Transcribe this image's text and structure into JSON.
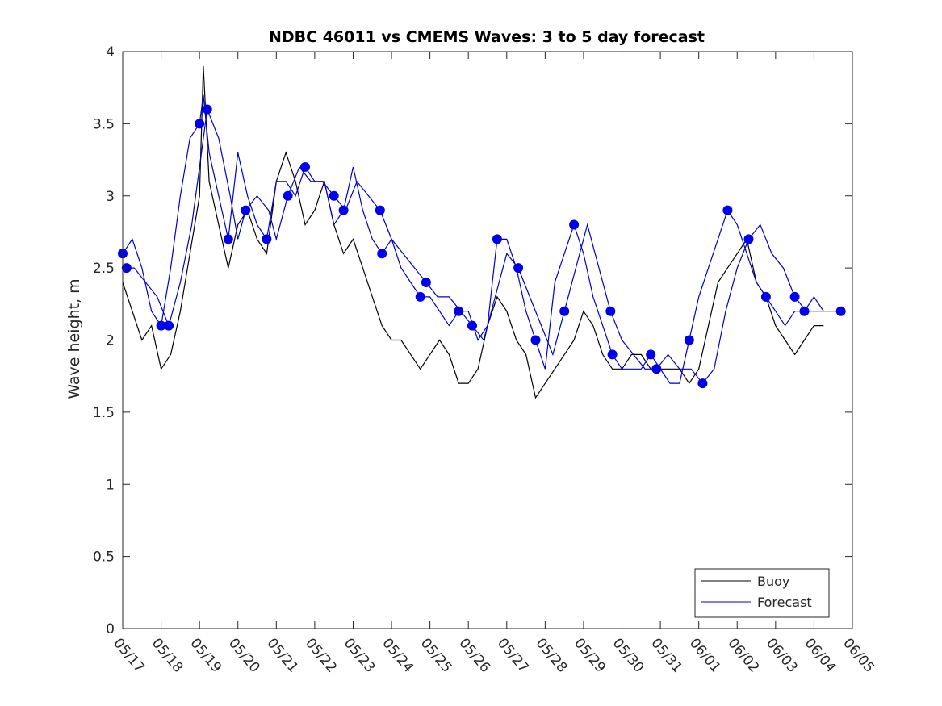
{
  "chart_data": {
    "type": "line",
    "title": "NDBC 46011 vs CMEMS Waves: 3 to 5 day forecast",
    "xlabel": "",
    "ylabel": "Wave height, m",
    "x_tick_labels": [
      "05/17",
      "05/18",
      "05/19",
      "05/20",
      "05/21",
      "05/22",
      "05/23",
      "05/24",
      "05/25",
      "05/26",
      "05/27",
      "05/28",
      "05/29",
      "05/30",
      "05/31",
      "06/01",
      "06/02",
      "06/03",
      "06/04",
      "06/05"
    ],
    "y_ticks": [
      0,
      0.5,
      1,
      1.5,
      2,
      2.5,
      3,
      3.5,
      4
    ],
    "y_tick_labels": [
      "0",
      "0.5",
      "1",
      "1.5",
      "2",
      "2.5",
      "3",
      "3.5",
      "4"
    ],
    "xlim_days": [
      0,
      19
    ],
    "ylim": [
      0,
      4
    ],
    "legend": {
      "position": "bottom-right",
      "entries": [
        {
          "label": "Buoy",
          "color": "#000000"
        },
        {
          "label": "Forecast",
          "color": "#0000cc"
        }
      ]
    },
    "series": [
      {
        "name": "Buoy",
        "color": "#000000",
        "x_days": [
          0,
          0.25,
          0.5,
          0.75,
          1.0,
          1.25,
          1.5,
          1.75,
          2.0,
          2.1,
          2.25,
          2.5,
          2.75,
          3.0,
          3.25,
          3.5,
          3.75,
          4.0,
          4.25,
          4.5,
          4.75,
          5.0,
          5.25,
          5.5,
          5.75,
          6.0,
          6.25,
          6.5,
          6.75,
          7.0,
          7.25,
          7.5,
          7.75,
          8.0,
          8.25,
          8.5,
          8.75,
          9.0,
          9.25,
          9.5,
          9.75,
          10.0,
          10.25,
          10.5,
          10.75,
          11.0,
          11.25,
          11.5,
          11.75,
          12.0,
          12.25,
          12.5,
          12.75,
          13.0,
          13.25,
          13.5,
          13.75,
          14.0,
          14.25,
          14.5,
          14.75,
          15.0,
          15.25,
          15.5,
          15.75,
          16.0,
          16.25,
          16.5,
          16.75,
          17.0,
          17.25,
          17.5,
          17.75,
          18.0,
          18.25
        ],
        "values": [
          2.4,
          2.2,
          2.0,
          2.1,
          1.8,
          1.9,
          2.2,
          2.6,
          3.0,
          3.9,
          3.1,
          2.8,
          2.5,
          2.8,
          2.9,
          2.7,
          2.6,
          3.1,
          3.3,
          3.1,
          2.8,
          2.9,
          3.1,
          2.8,
          2.6,
          2.7,
          2.5,
          2.3,
          2.1,
          2.0,
          2.0,
          1.9,
          1.8,
          1.9,
          2.0,
          1.9,
          1.7,
          1.7,
          1.8,
          2.1,
          2.3,
          2.2,
          2.0,
          1.9,
          1.6,
          1.7,
          1.8,
          1.9,
          2.0,
          2.2,
          2.1,
          1.9,
          1.8,
          1.8,
          1.9,
          1.9,
          1.8,
          1.8,
          1.8,
          1.8,
          1.7,
          1.8,
          2.1,
          2.4,
          2.5,
          2.6,
          2.7,
          2.4,
          2.3,
          2.1,
          2.0,
          1.9,
          2.0,
          2.1,
          2.1
        ]
      },
      {
        "name": "Forecast",
        "color": "#0000cc",
        "x_days": [
          0,
          0.25,
          0.5,
          0.75,
          1.0,
          1.25,
          1.5,
          1.75,
          2.0,
          2.1,
          2.25,
          2.5,
          2.75,
          3.0,
          3.25,
          3.5,
          3.75,
          4.0,
          4.25,
          4.5,
          4.75,
          5.0,
          5.25,
          5.5,
          5.75,
          6.0,
          6.25,
          6.5,
          6.75,
          7.0,
          7.25,
          7.5,
          7.75,
          8.0,
          8.25,
          8.5,
          8.75,
          9.0,
          9.25,
          9.5,
          9.75,
          10.0,
          10.25,
          10.5,
          10.75,
          11.0,
          11.25,
          11.5,
          11.75,
          12.0,
          12.25,
          12.5,
          12.75,
          13.0,
          13.25,
          13.5,
          13.75,
          14.0,
          14.25,
          14.5,
          14.75,
          15.0,
          15.25,
          15.5,
          15.75,
          16.0,
          16.25,
          16.5,
          16.75,
          17.0,
          17.25,
          17.5,
          17.75,
          18.0,
          18.25
        ],
        "values": [
          2.6,
          2.7,
          2.5,
          2.2,
          2.1,
          2.5,
          3.0,
          3.4,
          3.5,
          3.7,
          3.3,
          3.0,
          2.7,
          3.3,
          3.0,
          2.8,
          2.7,
          3.1,
          3.1,
          3.0,
          3.2,
          3.1,
          3.1,
          2.8,
          2.9,
          3.2,
          2.9,
          2.7,
          2.6,
          2.7,
          2.5,
          2.4,
          2.3,
          2.3,
          2.2,
          2.1,
          2.2,
          2.2,
          2.0,
          2.1,
          2.7,
          2.7,
          2.5,
          2.2,
          2.0,
          1.8,
          2.4,
          2.6,
          2.8,
          2.6,
          2.3,
          2.1,
          1.9,
          1.8,
          1.8,
          1.8,
          1.9,
          1.8,
          1.7,
          1.7,
          2.0,
          2.3,
          2.5,
          2.7,
          2.9,
          2.8,
          2.6,
          2.4,
          2.3,
          2.2,
          2.1,
          2.2,
          2.2,
          2.3,
          2.2
        ]
      },
      {
        "name": "Forecast",
        "color": "#0000cc",
        "x_days": [
          0.1,
          0.3,
          0.6,
          0.9,
          1.2,
          1.5,
          1.8,
          2.0,
          2.2,
          2.5,
          2.8,
          3.0,
          3.2,
          3.5,
          3.8,
          4.0,
          4.3,
          4.6,
          4.9,
          5.2,
          5.5,
          5.8,
          6.1,
          6.4,
          6.7,
          7.0,
          7.3,
          7.6,
          7.9,
          8.2,
          8.5,
          8.8,
          9.1,
          9.4,
          9.7,
          10.0,
          10.3,
          10.6,
          10.9,
          11.2,
          11.5,
          11.8,
          12.1,
          12.4,
          12.7,
          13.0,
          13.3,
          13.6,
          13.9,
          14.2,
          14.5,
          14.8,
          15.1,
          15.4,
          15.7,
          16.0,
          16.3,
          16.6,
          16.9,
          17.2,
          17.5,
          17.8,
          18.1,
          18.4,
          18.7
        ],
        "values": [
          2.5,
          2.5,
          2.4,
          2.3,
          2.1,
          2.4,
          2.8,
          3.2,
          3.6,
          3.4,
          3.0,
          2.7,
          2.9,
          3.0,
          2.9,
          2.7,
          3.0,
          3.2,
          3.1,
          3.1,
          3.0,
          2.9,
          3.1,
          3.0,
          2.9,
          2.7,
          2.6,
          2.5,
          2.4,
          2.3,
          2.3,
          2.2,
          2.1,
          2.0,
          2.3,
          2.6,
          2.5,
          2.3,
          2.1,
          1.9,
          2.2,
          2.5,
          2.8,
          2.5,
          2.2,
          2.0,
          1.9,
          1.8,
          1.8,
          1.9,
          1.8,
          1.8,
          1.7,
          1.8,
          2.2,
          2.5,
          2.7,
          2.8,
          2.6,
          2.5,
          2.3,
          2.2,
          2.2,
          2.2,
          2.2
        ]
      }
    ]
  }
}
